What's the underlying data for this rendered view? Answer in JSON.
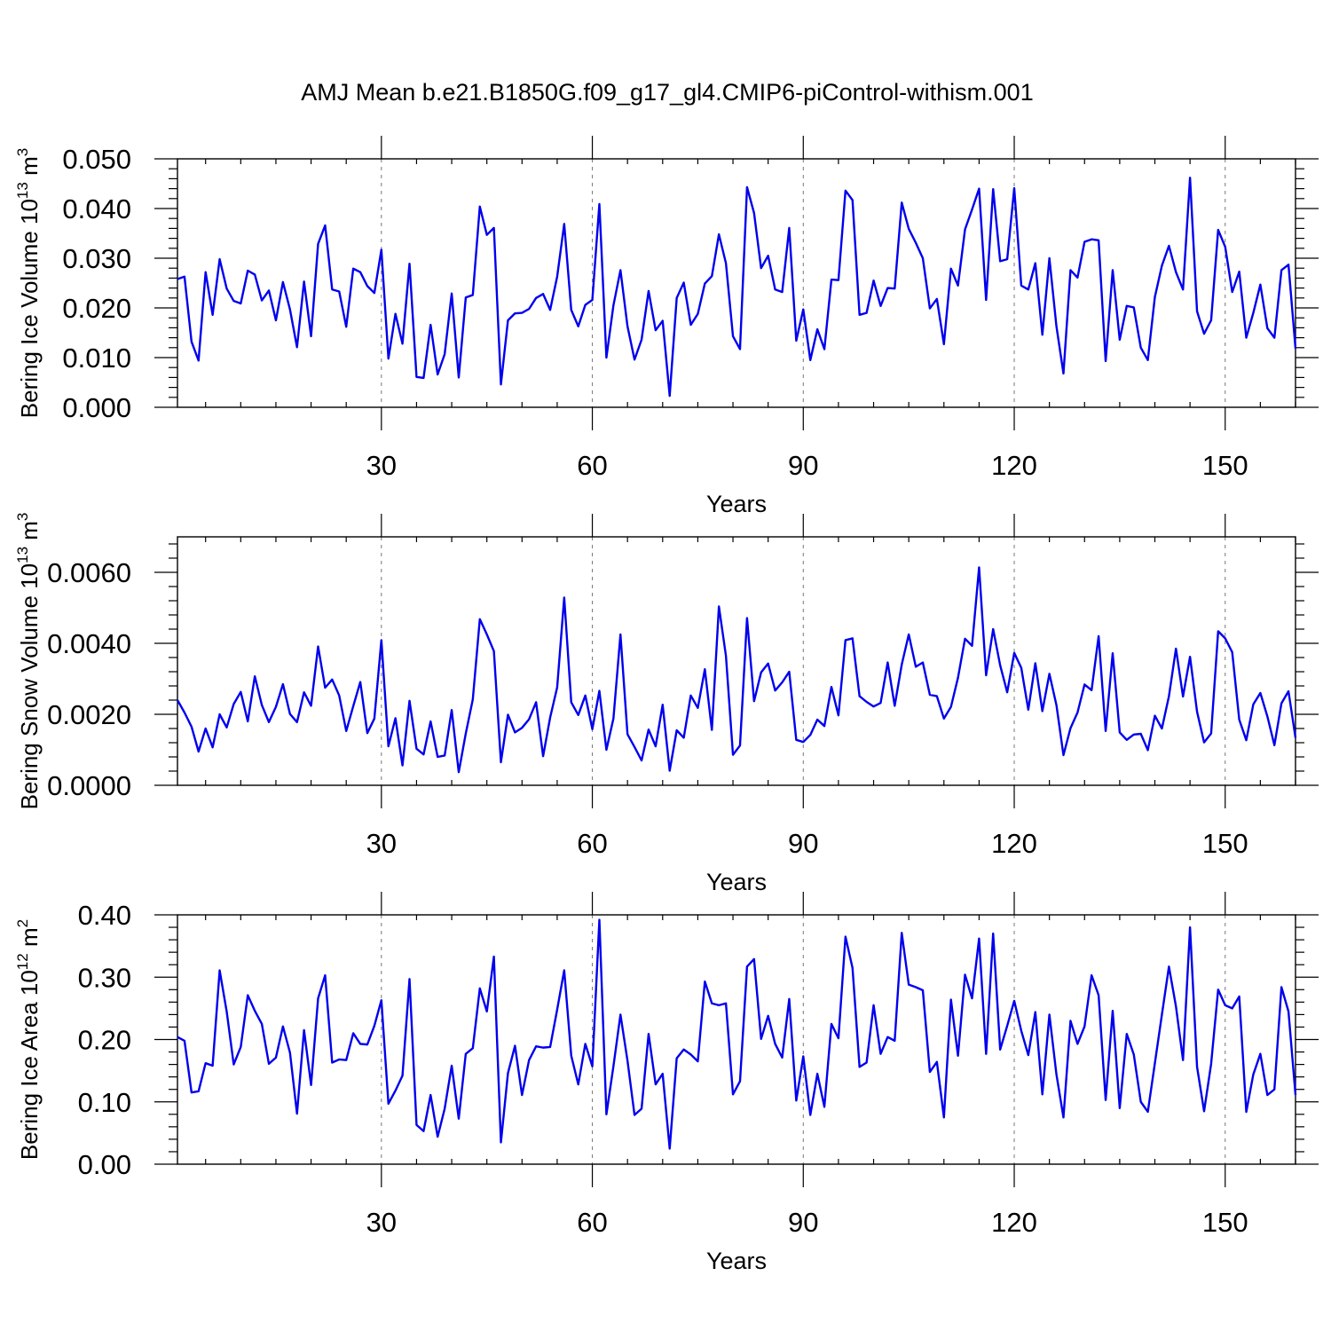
{
  "title": "AMJ Mean b.e21.B1850G.f09_g17_gl4.CMIP6-piControl-withism.001",
  "chart_data": [
    {
      "type": "line",
      "ylabel": "Bering Ice Volume 10",
      "ylabel_exp": "13",
      "ylabel_unit": " m",
      "ylabel_unit_exp": "3",
      "xlabel": "Years",
      "xlim": [
        1,
        160
      ],
      "ylim": [
        0,
        0.05
      ],
      "xticks": [
        30,
        60,
        90,
        120,
        150
      ],
      "xtick_labels": [
        "30",
        "60",
        "90",
        "120",
        "150"
      ],
      "yticks": [
        0,
        0.01,
        0.02,
        0.03,
        0.04,
        0.05
      ],
      "ytick_labels": [
        "0.000",
        "0.010",
        "0.020",
        "0.030",
        "0.040",
        "0.050"
      ],
      "grid_x": true,
      "series": [
        {
          "color": "#0000ee",
          "values": [
            0.0258,
            0.0263,
            0.0132,
            0.0094,
            0.0272,
            0.0186,
            0.0298,
            0.0239,
            0.0214,
            0.0209,
            0.0275,
            0.0267,
            0.0215,
            0.0235,
            0.0175,
            0.0252,
            0.0197,
            0.0121,
            0.0253,
            0.0143,
            0.0329,
            0.0366,
            0.0237,
            0.0233,
            0.0162,
            0.0279,
            0.0272,
            0.0244,
            0.023,
            0.0317,
            0.0098,
            0.0188,
            0.0128,
            0.0289,
            0.0061,
            0.0059,
            0.0166,
            0.0066,
            0.0107,
            0.0229,
            0.006,
            0.0221,
            0.0226,
            0.0404,
            0.0347,
            0.0361,
            0.0046,
            0.0175,
            0.0189,
            0.019,
            0.0198,
            0.022,
            0.0228,
            0.0196,
            0.0263,
            0.0369,
            0.0196,
            0.0163,
            0.0206,
            0.0216,
            0.0409,
            0.01,
            0.0205,
            0.0276,
            0.0163,
            0.0096,
            0.0136,
            0.0234,
            0.0155,
            0.0174,
            0.0023,
            0.022,
            0.0251,
            0.0166,
            0.0188,
            0.0249,
            0.0264,
            0.0348,
            0.029,
            0.0143,
            0.0117,
            0.0443,
            0.0391,
            0.028,
            0.0305,
            0.0237,
            0.0232,
            0.0361,
            0.0134,
            0.0197,
            0.0095,
            0.0157,
            0.0117,
            0.0257,
            0.0256,
            0.0436,
            0.0417,
            0.0186,
            0.019,
            0.0255,
            0.0204,
            0.024,
            0.0239,
            0.0412,
            0.0359,
            0.0331,
            0.03,
            0.0199,
            0.0218,
            0.0127,
            0.0279,
            0.0245,
            0.0358,
            0.0398,
            0.044,
            0.0216,
            0.0439,
            0.0294,
            0.0298,
            0.0441,
            0.0245,
            0.0237,
            0.029,
            0.0146,
            0.03,
            0.0163,
            0.0068,
            0.0276,
            0.0261,
            0.0333,
            0.0338,
            0.0336,
            0.0093,
            0.0276,
            0.0136,
            0.0204,
            0.0201,
            0.012,
            0.0095,
            0.0222,
            0.0285,
            0.0325,
            0.0272,
            0.0237,
            0.0462,
            0.0193,
            0.0148,
            0.0175,
            0.0357,
            0.0323,
            0.0232,
            0.0273,
            0.014,
            0.019,
            0.0247,
            0.0159,
            0.014,
            0.0276,
            0.0287,
            0.0118
          ]
        }
      ]
    },
    {
      "type": "line",
      "ylabel": "Bering Snow Volume 10",
      "ylabel_exp": "13",
      "ylabel_unit": " m",
      "ylabel_unit_exp": "3",
      "xlabel": "Years",
      "xlim": [
        1,
        160
      ],
      "ylim": [
        0,
        0.007
      ],
      "xticks": [
        30,
        60,
        90,
        120,
        150
      ],
      "xtick_labels": [
        "30",
        "60",
        "90",
        "120",
        "150"
      ],
      "yticks": [
        0,
        0.002,
        0.004,
        0.006
      ],
      "ytick_labels": [
        "0.0000",
        "0.0020",
        "0.0040",
        "0.0060"
      ],
      "grid_x": true,
      "series": [
        {
          "color": "#0000ee",
          "values": [
            0.0024,
            0.00205,
            0.00165,
            0.00095,
            0.0016,
            0.00107,
            0.002,
            0.00163,
            0.00229,
            0.00263,
            0.0018,
            0.00307,
            0.00226,
            0.00178,
            0.00221,
            0.00285,
            0.00201,
            0.00178,
            0.00262,
            0.00224,
            0.00391,
            0.00275,
            0.00298,
            0.00253,
            0.00153,
            0.00223,
            0.00291,
            0.00147,
            0.00188,
            0.00409,
            0.0011,
            0.00189,
            0.00056,
            0.00238,
            0.00103,
            0.00087,
            0.0018,
            0.0008,
            0.00084,
            0.00212,
            0.00037,
            0.00146,
            0.00242,
            0.00468,
            0.00425,
            0.00378,
            0.00065,
            0.00199,
            0.00149,
            0.00162,
            0.00186,
            0.00234,
            0.00082,
            0.00191,
            0.00276,
            0.00529,
            0.00234,
            0.00198,
            0.00253,
            0.00158,
            0.00266,
            0.001,
            0.00188,
            0.00425,
            0.00144,
            0.00108,
            0.0007,
            0.00157,
            0.0011,
            0.00227,
            0.00041,
            0.00155,
            0.00134,
            0.00253,
            0.00218,
            0.00327,
            0.00156,
            0.00504,
            0.00365,
            0.00086,
            0.00112,
            0.00471,
            0.00237,
            0.00318,
            0.00343,
            0.00267,
            0.0029,
            0.0032,
            0.00128,
            0.00122,
            0.00142,
            0.00185,
            0.00167,
            0.00277,
            0.00197,
            0.00409,
            0.00414,
            0.00251,
            0.00235,
            0.00222,
            0.00232,
            0.00346,
            0.00224,
            0.0034,
            0.00425,
            0.00334,
            0.00346,
            0.00255,
            0.00251,
            0.00188,
            0.00221,
            0.00303,
            0.00413,
            0.00393,
            0.00614,
            0.0031,
            0.0044,
            0.00338,
            0.00262,
            0.00373,
            0.00331,
            0.00213,
            0.00344,
            0.00209,
            0.00314,
            0.00226,
            0.00085,
            0.00161,
            0.00205,
            0.00284,
            0.00268,
            0.0042,
            0.00153,
            0.00372,
            0.00149,
            0.00128,
            0.00143,
            0.00145,
            0.00099,
            0.00196,
            0.0016,
            0.00251,
            0.00385,
            0.0025,
            0.00362,
            0.00207,
            0.00121,
            0.00146,
            0.00434,
            0.00414,
            0.00375,
            0.00185,
            0.00127,
            0.00228,
            0.0026,
            0.00194,
            0.00113,
            0.00231,
            0.00265,
            0.00134
          ]
        }
      ]
    },
    {
      "type": "line",
      "ylabel": "Bering Ice Area 10",
      "ylabel_exp": "12",
      "ylabel_unit": " m",
      "ylabel_unit_exp": "2",
      "xlabel": "Years",
      "xlim": [
        1,
        160
      ],
      "ylim": [
        0,
        0.4
      ],
      "xticks": [
        30,
        60,
        90,
        120,
        150
      ],
      "xtick_labels": [
        "30",
        "60",
        "90",
        "120",
        "150"
      ],
      "yticks": [
        0,
        0.1,
        0.2,
        0.3,
        0.4
      ],
      "ytick_labels": [
        "0.00",
        "0.10",
        "0.20",
        "0.30",
        "0.40"
      ],
      "grid_x": true,
      "series": [
        {
          "color": "#0000ee",
          "values": [
            0.204,
            0.198,
            0.115,
            0.117,
            0.162,
            0.158,
            0.311,
            0.245,
            0.16,
            0.188,
            0.271,
            0.246,
            0.225,
            0.161,
            0.171,
            0.221,
            0.179,
            0.081,
            0.215,
            0.127,
            0.266,
            0.303,
            0.163,
            0.168,
            0.167,
            0.21,
            0.193,
            0.192,
            0.222,
            0.263,
            0.097,
            0.118,
            0.142,
            0.297,
            0.063,
            0.053,
            0.111,
            0.044,
            0.089,
            0.158,
            0.073,
            0.177,
            0.186,
            0.282,
            0.245,
            0.333,
            0.035,
            0.146,
            0.19,
            0.111,
            0.167,
            0.189,
            0.187,
            0.188,
            0.248,
            0.311,
            0.174,
            0.128,
            0.193,
            0.157,
            0.392,
            0.08,
            0.157,
            0.24,
            0.166,
            0.079,
            0.089,
            0.209,
            0.128,
            0.145,
            0.025,
            0.17,
            0.184,
            0.176,
            0.165,
            0.293,
            0.258,
            0.255,
            0.258,
            0.112,
            0.133,
            0.317,
            0.329,
            0.201,
            0.238,
            0.193,
            0.171,
            0.265,
            0.102,
            0.173,
            0.079,
            0.145,
            0.092,
            0.225,
            0.202,
            0.365,
            0.315,
            0.156,
            0.163,
            0.255,
            0.177,
            0.204,
            0.198,
            0.371,
            0.288,
            0.284,
            0.279,
            0.148,
            0.164,
            0.075,
            0.264,
            0.174,
            0.304,
            0.266,
            0.362,
            0.177,
            0.37,
            0.184,
            0.222,
            0.262,
            0.214,
            0.175,
            0.244,
            0.112,
            0.24,
            0.144,
            0.075,
            0.23,
            0.193,
            0.221,
            0.303,
            0.271,
            0.103,
            0.246,
            0.09,
            0.209,
            0.176,
            0.1,
            0.084,
            0.162,
            0.24,
            0.317,
            0.253,
            0.167,
            0.38,
            0.156,
            0.085,
            0.161,
            0.28,
            0.255,
            0.25,
            0.269,
            0.084,
            0.144,
            0.177,
            0.111,
            0.12,
            0.284,
            0.245,
            0.111
          ]
        }
      ]
    }
  ]
}
